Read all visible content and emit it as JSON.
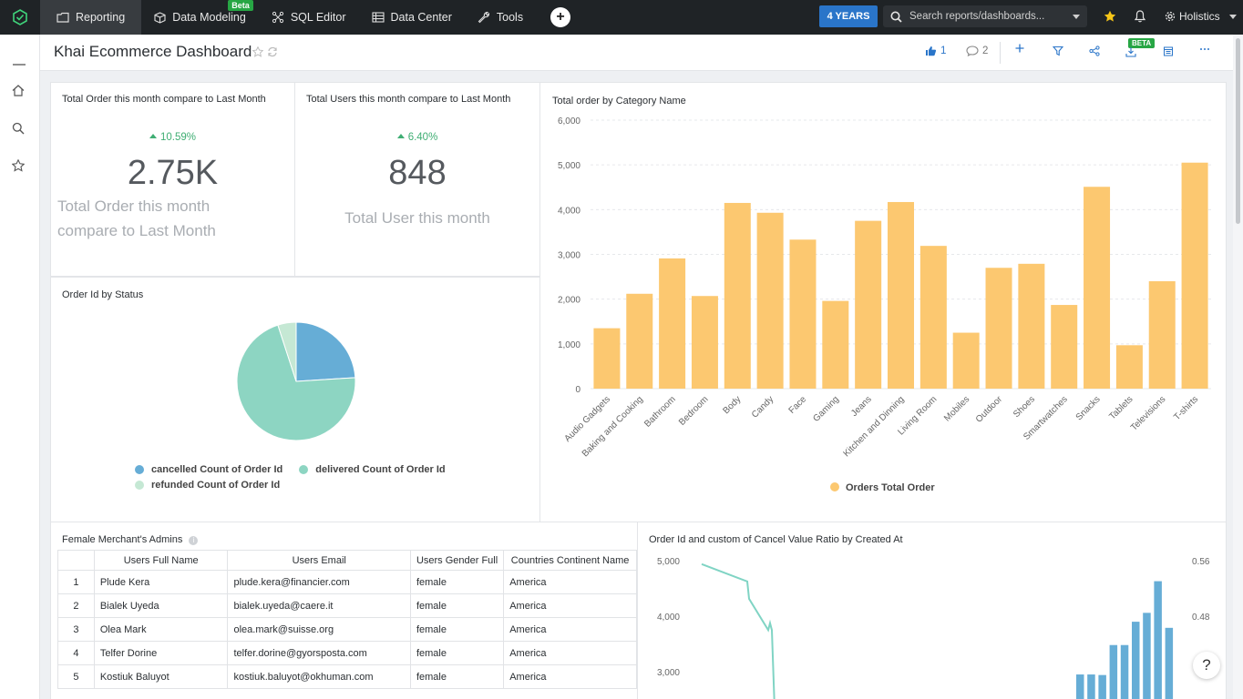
{
  "nav": {
    "tabs": [
      {
        "label": "Reporting",
        "icon": "reporting-icon"
      },
      {
        "label": "Data Modeling",
        "icon": "cube-icon",
        "badge": "Beta"
      },
      {
        "label": "SQL Editor",
        "icon": "sql-icon"
      },
      {
        "label": "Data Center",
        "icon": "data-center-icon"
      },
      {
        "label": "Tools",
        "icon": "wrench-icon"
      }
    ],
    "add_label": "+",
    "date_range": "4 YEARS",
    "search_placeholder": "Search reports/dashboards...",
    "user_label": "Holistics",
    "colors": {
      "topbar": "#1f2326",
      "accent": "#2a75c9",
      "beta": "#27a644"
    }
  },
  "header": {
    "title": "Khai Ecommerce Dashboard",
    "likes": "1",
    "comments": "2",
    "export_badge": "BETA"
  },
  "kpi_orders": {
    "title": "Total Order this month compare to Last Month",
    "delta": "10.59%",
    "value": "2.75K",
    "subtitle_line1": "Total Order this month",
    "subtitle_line2": "compare to Last Month"
  },
  "kpi_users": {
    "title": "Total Users this month compare to Last Month",
    "delta": "6.40%",
    "value": "848",
    "subtitle": "Total User this month"
  },
  "pie": {
    "title": "Order Id by Status",
    "legend": [
      {
        "label": "cancelled Count of Order Id",
        "color": "#66add6"
      },
      {
        "label": "delivered Count of Order Id",
        "color": "#8dd5c2"
      },
      {
        "label": "refunded Count of Order Id",
        "color": "#c5e8d4"
      }
    ]
  },
  "table": {
    "title": "Female Merchant's Admins",
    "columns": [
      "",
      "Users Full Name",
      "Users Email",
      "Users Gender Full",
      "Countries Continent Name"
    ],
    "rows": [
      [
        "1",
        "Plude Kera",
        "plude.kera@financier.com",
        "female",
        "America"
      ],
      [
        "2",
        "Bialek Uyeda",
        "bialek.uyeda@caere.it",
        "female",
        "America"
      ],
      [
        "3",
        "Olea Mark",
        "olea.mark@suisse.org",
        "female",
        "America"
      ],
      [
        "4",
        "Telfer Dorine",
        "telfer.dorine@gyorsposta.com",
        "female",
        "America"
      ],
      [
        "5",
        "Kostiuk Baluyot",
        "kostiuk.baluyot@okhuman.com",
        "female",
        "America"
      ]
    ]
  },
  "combo": {
    "title": "Order Id and custom of Cancel Value Ratio by Created At"
  },
  "help_label": "?",
  "chart_data": [
    {
      "type": "bar",
      "title": "Total order by Category Name",
      "categories": [
        "Audio Gadgets",
        "Baking and Cooking",
        "Bathroom",
        "Bedroom",
        "Body",
        "Candy",
        "Face",
        "Gaming",
        "Jeans",
        "Kitchen and Dinning",
        "Living Room",
        "Mobiles",
        "Outdoor",
        "Shoes",
        "Smartwatches",
        "Snacks",
        "Tablets",
        "Televisions",
        "T-shirts"
      ],
      "series": [
        {
          "name": "Orders Total Order",
          "values": [
            1350,
            2120,
            2910,
            2070,
            4150,
            3930,
            3330,
            1960,
            3750,
            4170,
            3190,
            1250,
            2700,
            2790,
            1870,
            4510,
            970,
            2400,
            5050
          ],
          "color": "#fcc870"
        }
      ],
      "ylim": [
        0,
        6000
      ],
      "yticks": [
        "0",
        "1,000",
        "2,000",
        "3,000",
        "4,000",
        "5,000",
        "6,000"
      ],
      "grid": true,
      "legend": "bottom"
    },
    {
      "type": "pie",
      "title": "Order Id by Status",
      "categories": [
        "cancelled Count of Order Id",
        "delivered Count of Order Id",
        "refunded Count of Order Id"
      ],
      "values": [
        24,
        71,
        5
      ],
      "legend": "bottom"
    },
    {
      "type": "bar",
      "title": "Order Id and custom of Cancel Value Ratio by Created At",
      "yticks_left": [
        "5,000",
        "4,000",
        "3,000"
      ],
      "yticks_right": [
        "0.56",
        "0.48"
      ],
      "series": [
        {
          "type": "bar",
          "values": [
            2950,
            2950,
            2940,
            3480,
            3480,
            3900,
            4060,
            4630,
            3790
          ],
          "color": "#66add6"
        },
        {
          "type": "line",
          "values": [
            0.555,
            0.53,
            0.505,
            0.46,
            0.47,
            0.46
          ],
          "color": "#80d4c4"
        }
      ]
    }
  ]
}
